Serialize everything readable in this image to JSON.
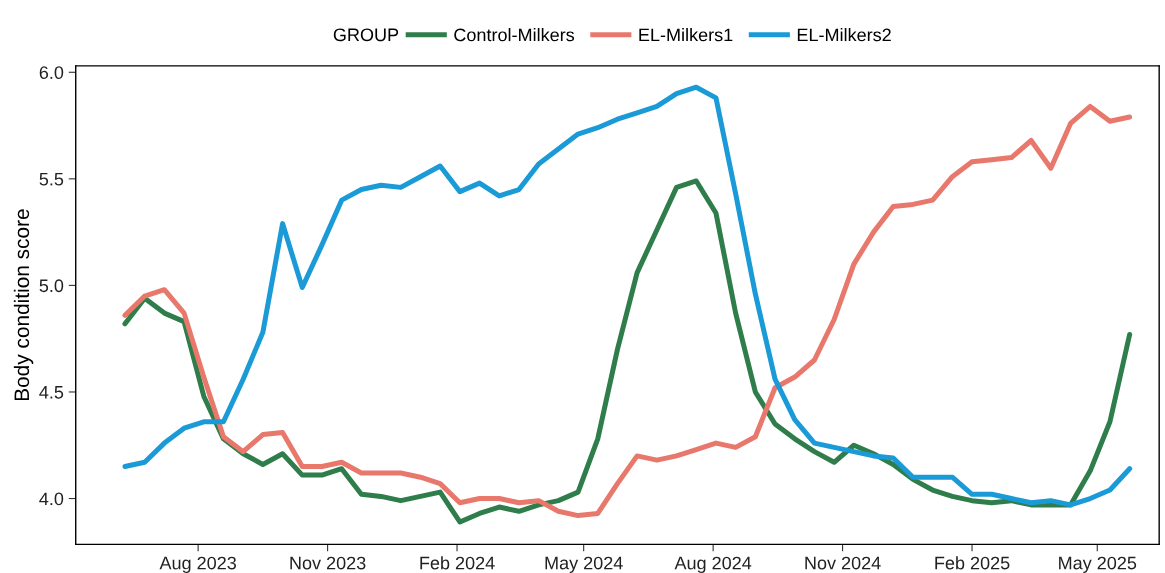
{
  "chart_data": {
    "type": "line",
    "ylabel": "Body condition score",
    "legend_title": "GROUP",
    "legend": "top",
    "grid": false,
    "marker": "none",
    "line_style": "solid",
    "x": [
      "2023-06-10",
      "2023-06-24",
      "2023-07-08",
      "2023-07-22",
      "2023-08-05",
      "2023-08-19",
      "2023-09-02",
      "2023-09-16",
      "2023-09-30",
      "2023-10-14",
      "2023-10-28",
      "2023-11-11",
      "2023-11-25",
      "2023-12-09",
      "2023-12-23",
      "2024-01-06",
      "2024-01-20",
      "2024-02-03",
      "2024-02-17",
      "2024-03-02",
      "2024-03-16",
      "2024-03-30",
      "2024-04-13",
      "2024-04-27",
      "2024-05-11",
      "2024-05-25",
      "2024-06-08",
      "2024-06-22",
      "2024-07-06",
      "2024-07-20",
      "2024-08-03",
      "2024-08-17",
      "2024-08-31",
      "2024-09-14",
      "2024-09-28",
      "2024-10-12",
      "2024-10-26",
      "2024-11-09",
      "2024-11-23",
      "2024-12-07",
      "2024-12-21",
      "2025-01-04",
      "2025-01-18",
      "2025-02-01",
      "2025-02-15",
      "2025-03-01",
      "2025-03-15",
      "2025-03-29",
      "2025-04-12",
      "2025-04-26",
      "2025-05-10",
      "2025-05-24"
    ],
    "series": [
      {
        "name": "Control-Milkers",
        "color": "#2e7d4a",
        "values": [
          4.82,
          4.94,
          4.87,
          4.83,
          4.48,
          4.28,
          4.21,
          4.16,
          4.21,
          4.11,
          4.11,
          4.14,
          4.02,
          4.01,
          3.99,
          4.01,
          4.03,
          3.89,
          3.93,
          3.96,
          3.94,
          3.97,
          3.99,
          4.03,
          4.28,
          4.7,
          5.06,
          5.26,
          5.46,
          5.49,
          5.34,
          4.87,
          4.5,
          4.35,
          4.28,
          4.22,
          4.17,
          4.25,
          4.21,
          4.16,
          4.09,
          4.04,
          4.01,
          3.99,
          3.98,
          3.99,
          3.97,
          3.97,
          3.97,
          4.13,
          4.36,
          4.77
        ]
      },
      {
        "name": "EL-Milkers1",
        "color": "#e8776c",
        "values": [
          4.86,
          4.95,
          4.98,
          4.87,
          4.57,
          4.29,
          4.22,
          4.3,
          4.31,
          4.15,
          4.15,
          4.17,
          4.12,
          4.12,
          4.12,
          4.1,
          4.07,
          3.98,
          4.0,
          4.0,
          3.98,
          3.99,
          3.94,
          3.92,
          3.93,
          4.07,
          4.2,
          4.18,
          4.2,
          4.23,
          4.26,
          4.24,
          4.29,
          4.52,
          4.57,
          4.65,
          4.84,
          5.1,
          5.25,
          5.37,
          5.38,
          5.4,
          5.51,
          5.58,
          5.59,
          5.6,
          5.68,
          5.55,
          5.76,
          5.84,
          5.77,
          5.79
        ]
      },
      {
        "name": "EL-Milkers2",
        "color": "#1a9ad6",
        "values": [
          4.15,
          4.17,
          4.26,
          4.33,
          4.36,
          4.36,
          4.56,
          4.78,
          5.29,
          4.99,
          5.19,
          5.4,
          5.45,
          5.47,
          5.46,
          5.51,
          5.56,
          5.44,
          5.48,
          5.42,
          5.45,
          5.57,
          5.64,
          5.71,
          5.74,
          5.78,
          5.81,
          5.84,
          5.9,
          5.93,
          5.88,
          5.43,
          4.96,
          4.56,
          4.37,
          4.26,
          4.24,
          4.22,
          4.2,
          4.19,
          4.1,
          4.1,
          4.1,
          4.02,
          4.02,
          4.0,
          3.98,
          3.99,
          3.97,
          4.0,
          4.04,
          4.14
        ]
      }
    ],
    "xlim": [
      "2023-05-06",
      "2025-06-14"
    ],
    "xticks": [
      {
        "value": "2023-08-01",
        "label": "Aug 2023"
      },
      {
        "value": "2023-11-01",
        "label": "Nov 2023"
      },
      {
        "value": "2024-02-01",
        "label": "Feb 2024"
      },
      {
        "value": "2024-05-01",
        "label": "May 2024"
      },
      {
        "value": "2024-08-01",
        "label": "Aug 2024"
      },
      {
        "value": "2024-11-01",
        "label": "Nov 2024"
      },
      {
        "value": "2025-02-01",
        "label": "Feb 2025"
      },
      {
        "value": "2025-05-01",
        "label": "May 2025"
      }
    ],
    "ylim": [
      3.785,
      6.03
    ],
    "yticks": [
      {
        "value": 4,
        "label": "4.0"
      },
      {
        "value": 4.5,
        "label": "4.5"
      },
      {
        "value": 5,
        "label": "5.0"
      },
      {
        "value": 5.5,
        "label": "5.5"
      },
      {
        "value": 6,
        "label": "6.0"
      }
    ]
  }
}
